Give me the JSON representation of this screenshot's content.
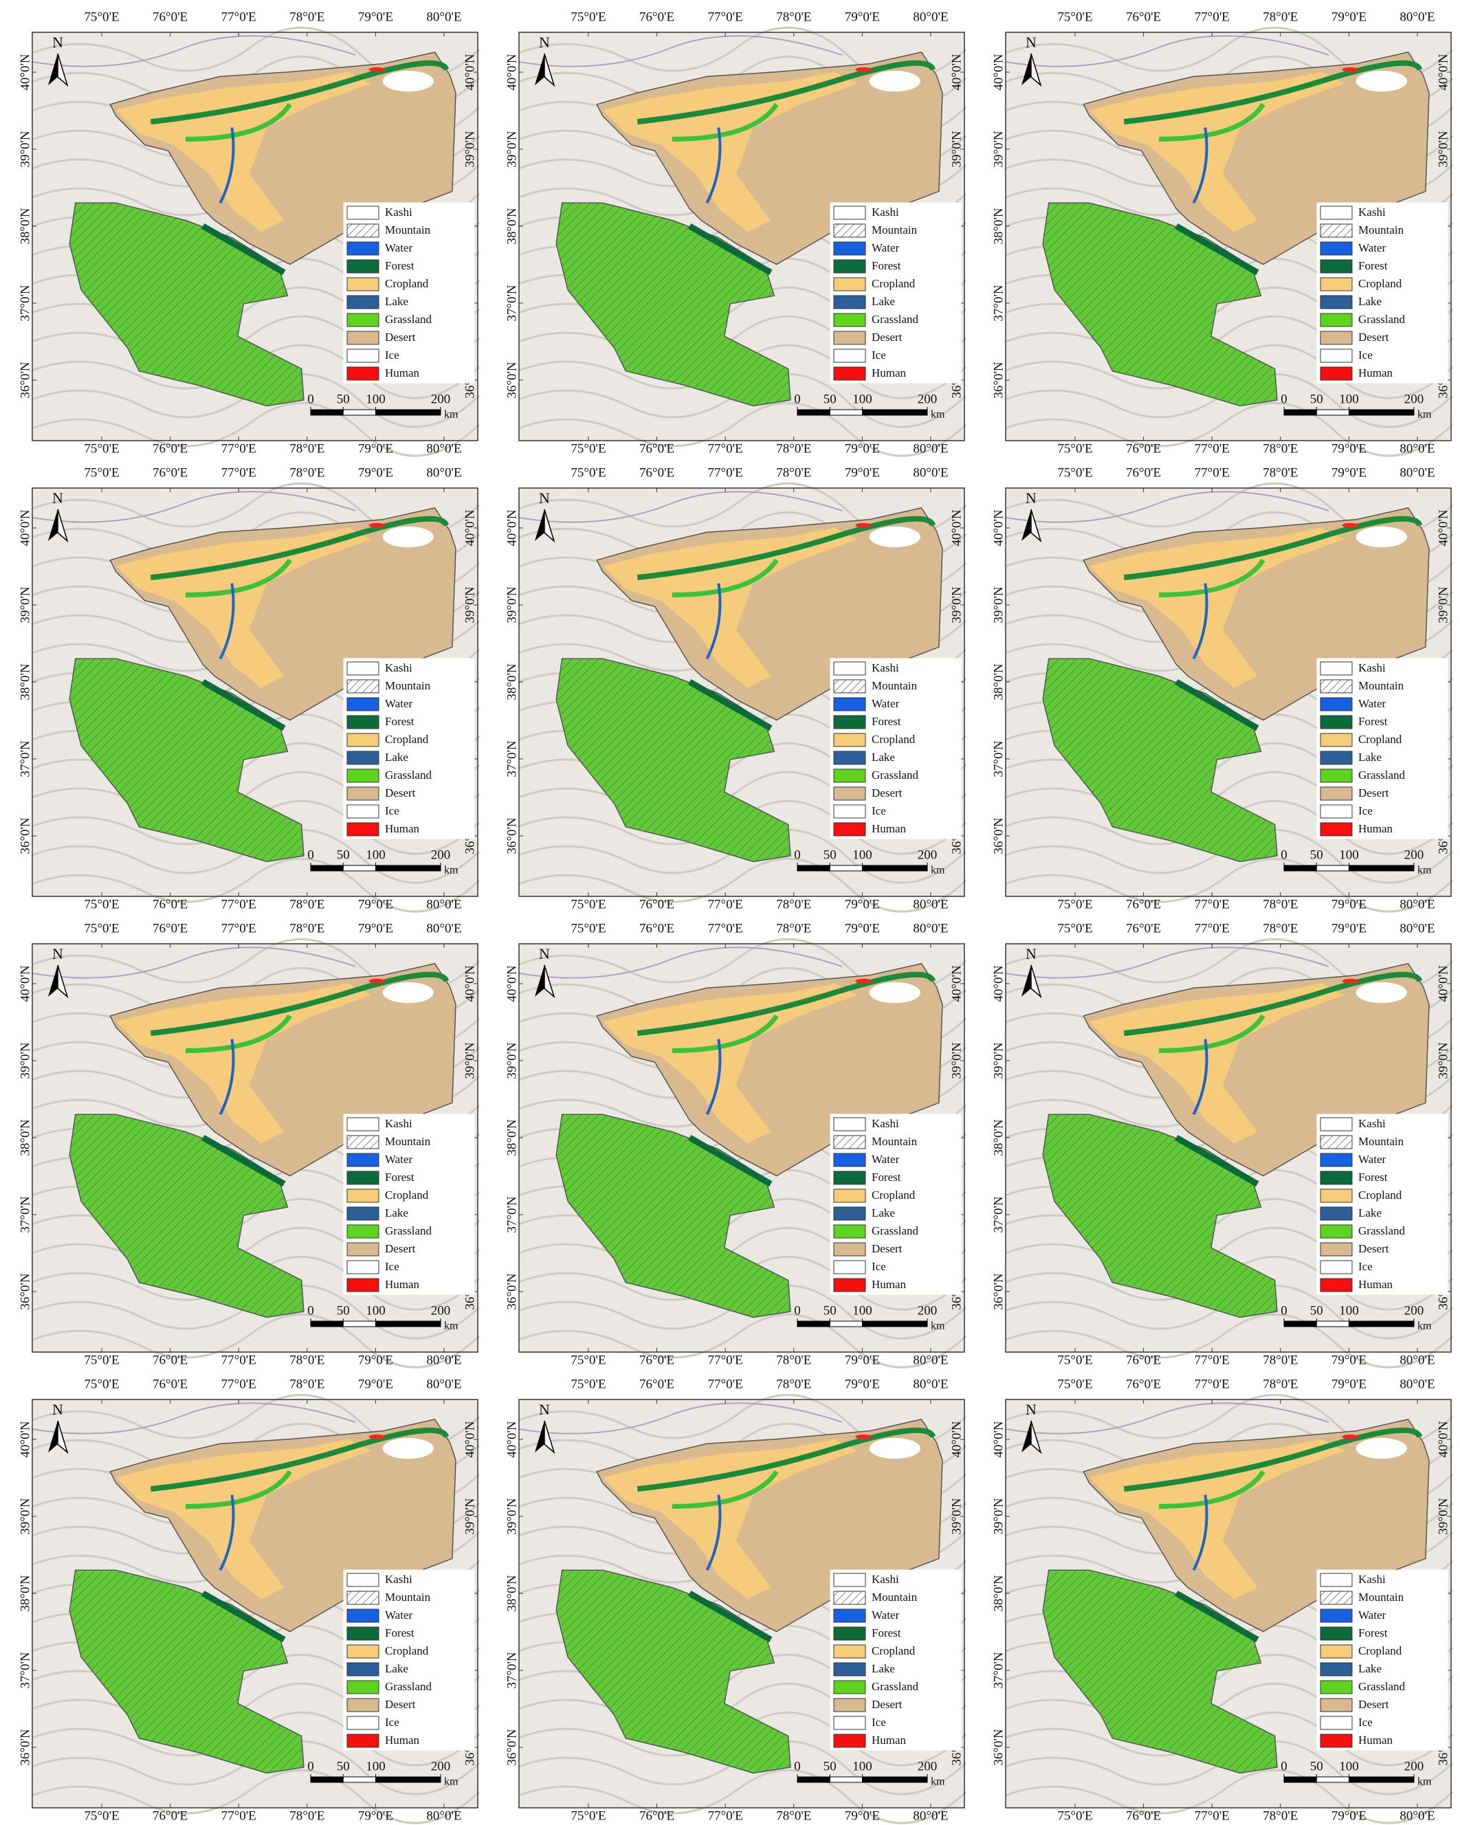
{
  "map": {
    "north": "N",
    "lon_ticks": [
      {
        "value": 75,
        "label": "75°0'E"
      },
      {
        "value": 76,
        "label": "76°0'E"
      },
      {
        "value": 77,
        "label": "77°0'E"
      },
      {
        "value": 78,
        "label": "78°0'E"
      },
      {
        "value": 79,
        "label": "79°0'E"
      },
      {
        "value": 80,
        "label": "80°0'E"
      }
    ],
    "lat_ticks": [
      {
        "value": 36,
        "label": "36°0'N"
      },
      {
        "value": 37,
        "label": "37°0'N"
      },
      {
        "value": 38,
        "label": "38°0'N"
      },
      {
        "value": 39,
        "label": "39°0'N"
      },
      {
        "value": 40,
        "label": "40°0'N"
      }
    ],
    "legend": [
      "Kashi",
      "Mountain",
      "Water",
      "Forest",
      "Cropland",
      "Lake",
      "Grassland",
      "Desert",
      "Ice",
      "Human"
    ],
    "scale_bar": {
      "ticks": [
        0,
        50,
        100,
        200
      ],
      "unit": "km"
    }
  }
}
